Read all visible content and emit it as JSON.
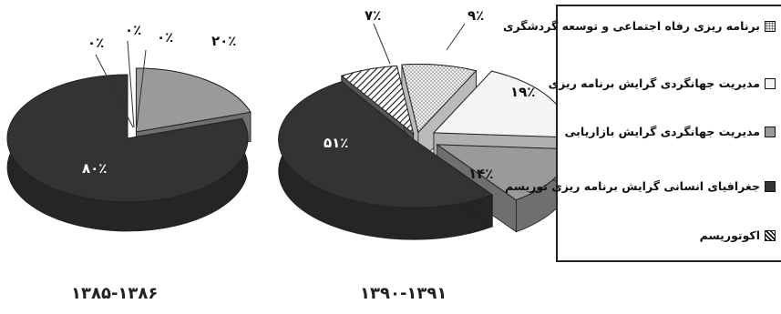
{
  "chart_data": [
    {
      "type": "pie",
      "period": "۱۳۸۵-۱۳۸۶",
      "slices": [
        {
          "name": "برنامه ریزی رفاه اجتماعی و توسعه گردشگری",
          "value": 0,
          "label": "۰٪"
        },
        {
          "name": "مدیریت جهانگردی گرایش برنامه ریزی",
          "value": 0,
          "label": "۰٪"
        },
        {
          "name": "مدیریت جهانگردی گرایش بازاریابی",
          "value": 20,
          "label": "۲۰٪"
        },
        {
          "name": "جغرافیای انسانی گرایش برنامه ریزی توریسم",
          "value": 80,
          "label": "۸۰٪"
        },
        {
          "name": "اکوتوریسم",
          "value": 0,
          "label": "۰٪"
        }
      ]
    },
    {
      "type": "pie",
      "period": "۱۳۹۰-۱۳۹۱",
      "slices": [
        {
          "name": "برنامه ریزی رفاه اجتماعی و توسعه گردشگری",
          "value": 9,
          "label": "۹٪"
        },
        {
          "name": "مدیریت جهانگردی گرایش برنامه ریزی",
          "value": 19,
          "label": "۱۹٪"
        },
        {
          "name": "مدیریت جهانگردی گرایش بازاریابی",
          "value": 14,
          "label": "۱۴٪"
        },
        {
          "name": "جغرافیای انسانی گرایش برنامه ریزی توریسم",
          "value": 51,
          "label": "۵۱٪"
        },
        {
          "name": "اکوتوریسم",
          "value": 7,
          "label": "۷٪"
        }
      ]
    }
  ],
  "legend": [
    {
      "label": "برنامه ریزی رفاه اجتماعی و توسعه گردشگری",
      "pattern": "dots",
      "color": "#e8e8e8"
    },
    {
      "label": "مدیریت جهانگردی گرایش برنامه ریزی",
      "pattern": "solid",
      "color": "#f5f5f5"
    },
    {
      "label": "مدیریت جهانگردی گرایش بازاریابی",
      "pattern": "solid",
      "color": "#9a9a9a"
    },
    {
      "label": "جغرافیای انسانی گرایش برنامه ریزی توریسم",
      "pattern": "solid",
      "color": "#333333"
    },
    {
      "label": "اکوتوریسم",
      "pattern": "hatch",
      "color": "#ffffff"
    }
  ]
}
